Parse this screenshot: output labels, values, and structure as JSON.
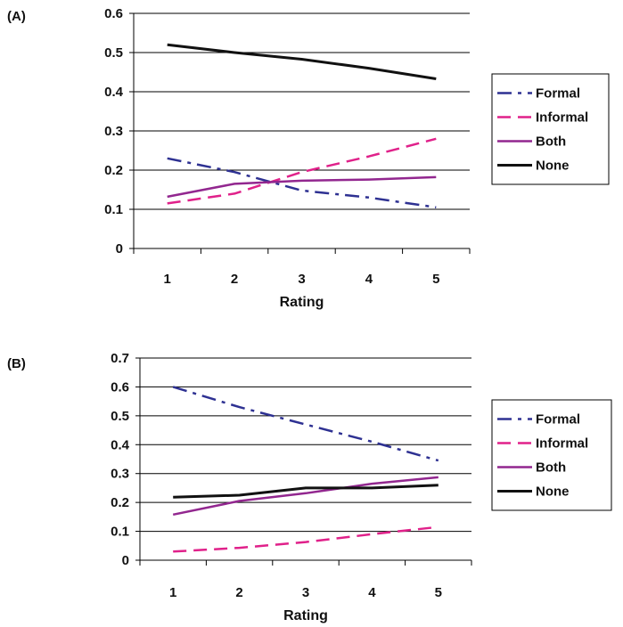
{
  "chart_data": [
    {
      "type": "line",
      "panel_label": "(A)",
      "categories": [
        "1",
        "2",
        "3",
        "4",
        "5"
      ],
      "xlabel": "Rating",
      "ylabel": "",
      "ylim": [
        0,
        0.6
      ],
      "yticks": [
        "0",
        "0.1",
        "0.2",
        "0.3",
        "0.4",
        "0.5",
        "0.6"
      ],
      "grid": "horizontal",
      "legend_position": "right",
      "series": [
        {
          "name": "Formal",
          "values": [
            0.23,
            0.195,
            0.148,
            0.13,
            0.105
          ],
          "color": "#2e3192",
          "dash": "dash-dot"
        },
        {
          "name": "Informal",
          "values": [
            0.115,
            0.14,
            0.195,
            0.235,
            0.28
          ],
          "color": "#e0218a",
          "dash": "dash"
        },
        {
          "name": "Both",
          "values": [
            0.132,
            0.165,
            0.173,
            0.176,
            0.182
          ],
          "color": "#92278f",
          "dash": "solid"
        },
        {
          "name": "None",
          "values": [
            0.52,
            0.5,
            0.483,
            0.46,
            0.433
          ],
          "color": "#111111",
          "dash": "solid"
        }
      ]
    },
    {
      "type": "line",
      "panel_label": "(B)",
      "categories": [
        "1",
        "2",
        "3",
        "4",
        "5"
      ],
      "xlabel": "Rating",
      "ylabel": "",
      "ylim": [
        0,
        0.7
      ],
      "yticks": [
        "0",
        "0.1",
        "0.2",
        "0.3",
        "0.4",
        "0.5",
        "0.6",
        "0.7"
      ],
      "grid": "horizontal",
      "legend_position": "right",
      "series": [
        {
          "name": "Formal",
          "values": [
            0.6,
            0.53,
            0.47,
            0.41,
            0.345
          ],
          "color": "#2e3192",
          "dash": "dash-dot"
        },
        {
          "name": "Informal",
          "values": [
            0.03,
            0.043,
            0.063,
            0.09,
            0.115
          ],
          "color": "#e0218a",
          "dash": "dash"
        },
        {
          "name": "Both",
          "values": [
            0.158,
            0.205,
            0.232,
            0.265,
            0.287
          ],
          "color": "#92278f",
          "dash": "solid"
        },
        {
          "name": "None",
          "values": [
            0.218,
            0.225,
            0.25,
            0.25,
            0.26
          ],
          "color": "#111111",
          "dash": "solid"
        }
      ]
    }
  ]
}
